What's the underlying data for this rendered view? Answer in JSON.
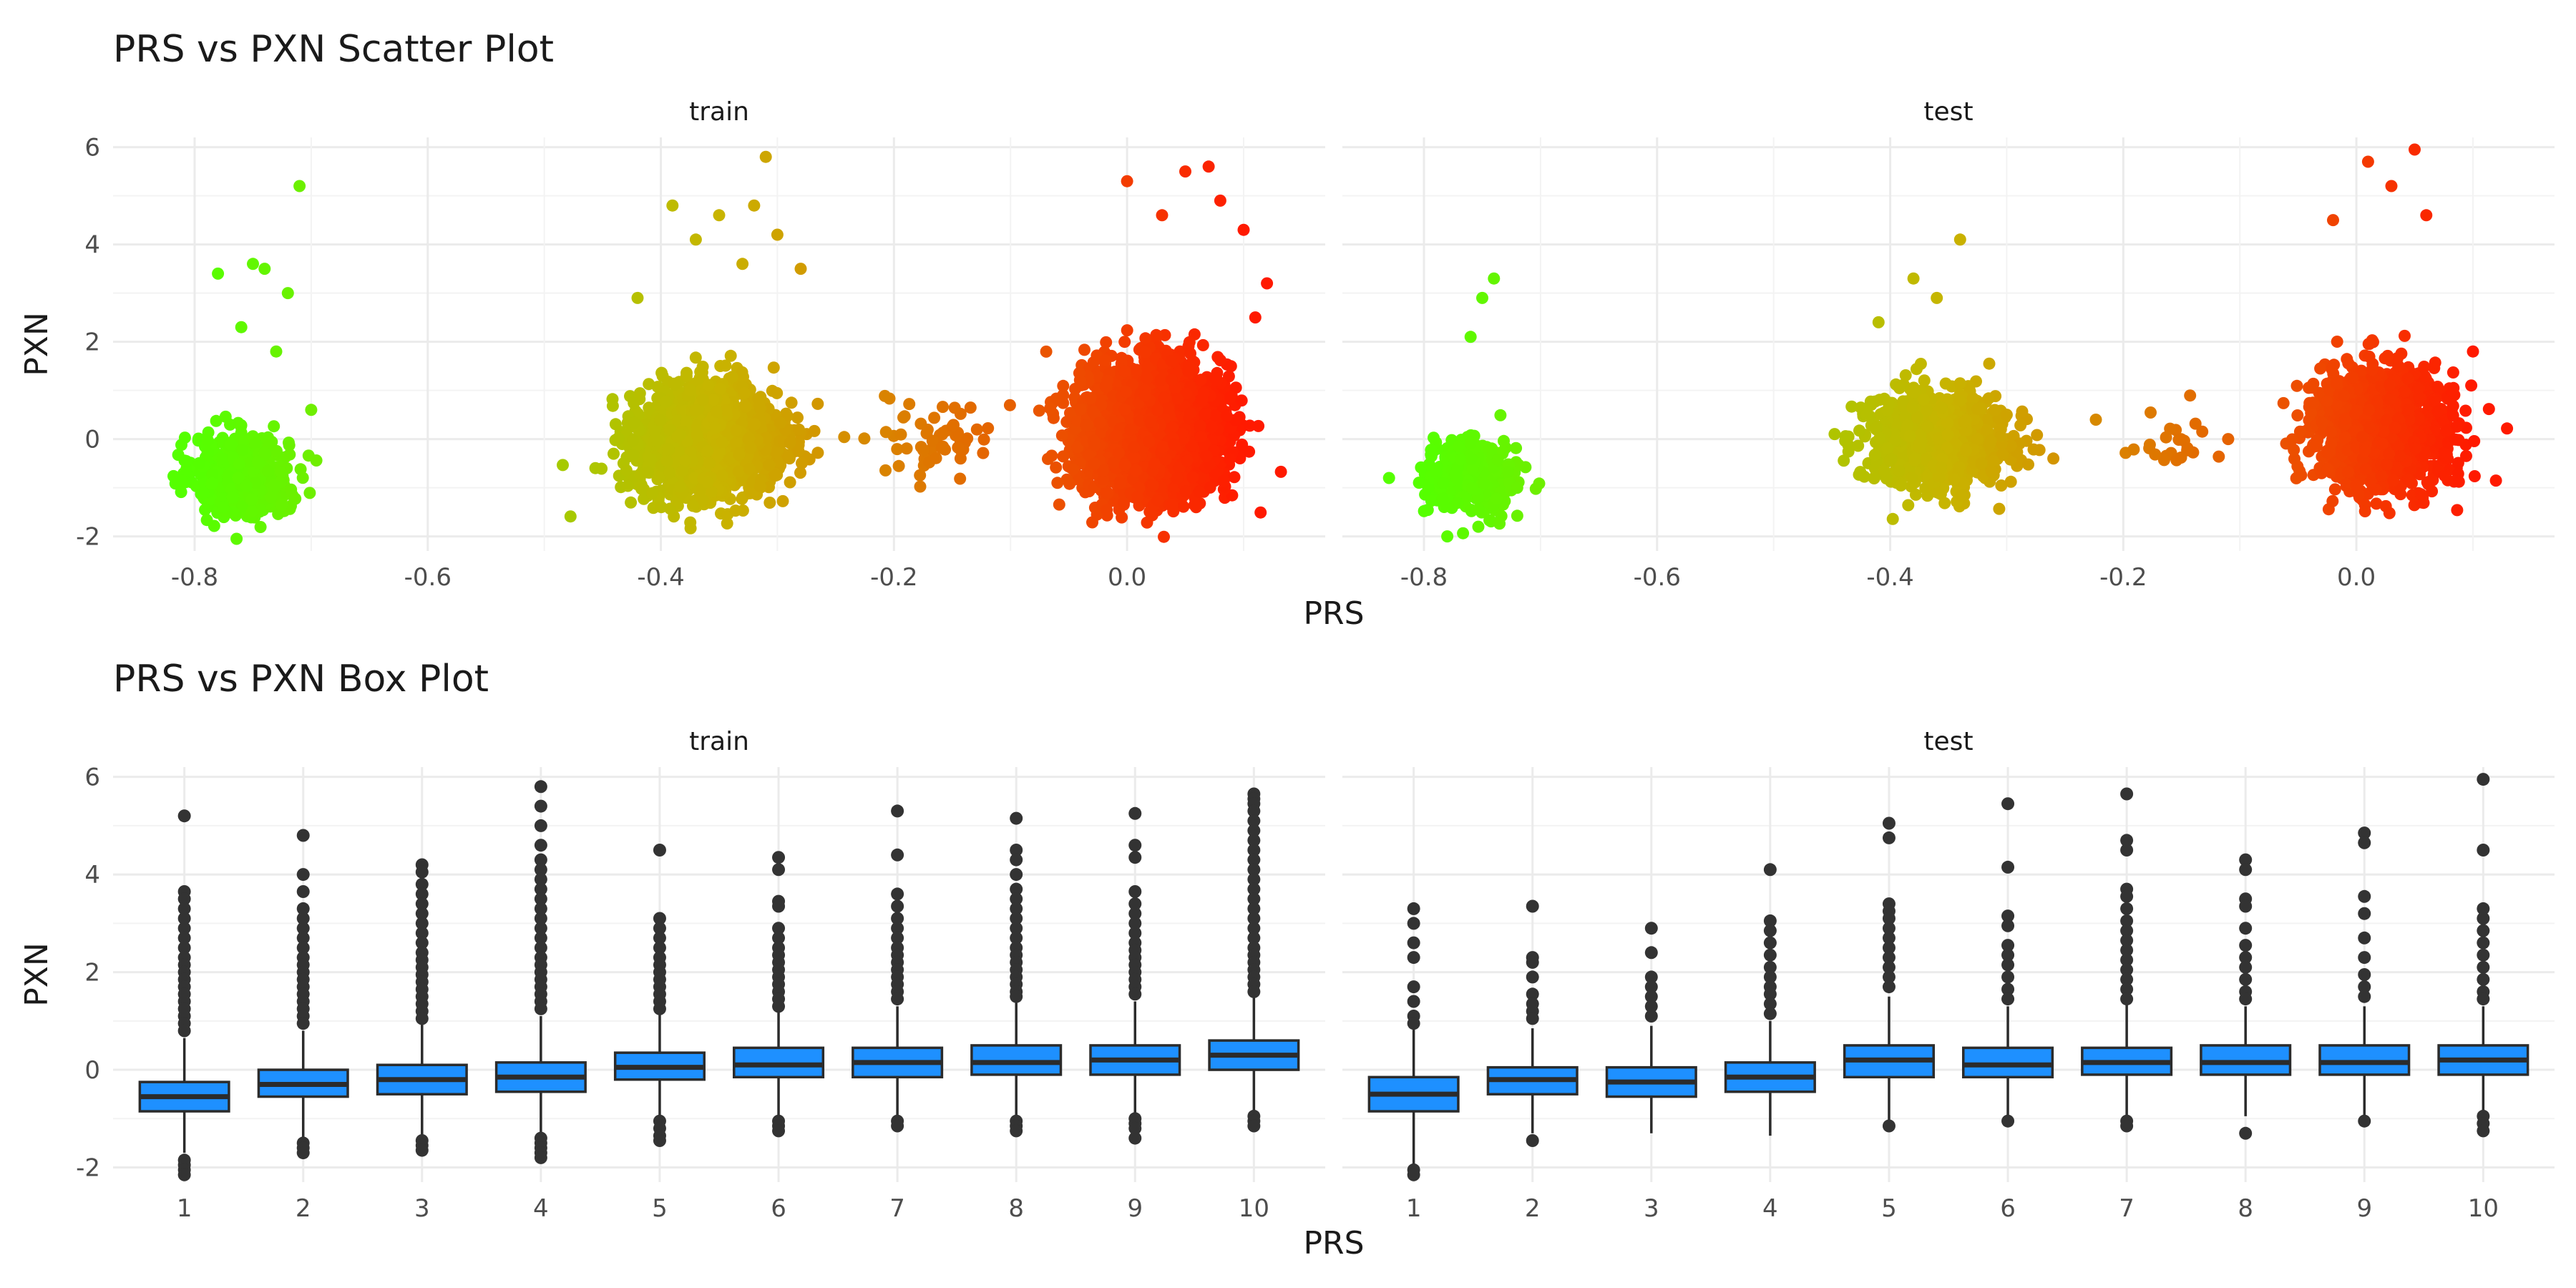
{
  "colors": {
    "low": "#55ff00",
    "mid": "#c8b400",
    "high": "#ff1a00",
    "box_fill": "#1e90ff",
    "box_line": "#2b2b2b",
    "outlier": "#333333"
  },
  "chart_data": [
    {
      "type": "scatter",
      "title": "PRS vs PXN Scatter Plot",
      "xlabel": "PRS",
      "ylabel": "PXN",
      "xlim": [
        -0.87,
        0.17
      ],
      "ylim": [
        -2.3,
        6.2
      ],
      "xticks": [
        -0.8,
        -0.6,
        -0.4,
        -0.2,
        0.0
      ],
      "xtick_labels": [
        "-0.8",
        "-0.6",
        "-0.4",
        "-0.2",
        "0.0"
      ],
      "yticks": [
        -2,
        0,
        2,
        4,
        6
      ],
      "ytick_labels": [
        "-2",
        "0",
        "2",
        "4",
        "6"
      ],
      "color_scale": {
        "variable": "PRS",
        "range": [
          -0.8,
          0.1
        ]
      },
      "grid": true,
      "panels": [
        {
          "label": "train",
          "clusters": [
            {
              "x_center": -0.76,
              "x_sd": 0.02,
              "y_center": -0.75,
              "y_sd": 0.4,
              "n": 700,
              "extremes": [
                [
                  -0.71,
                  5.2
                ],
                [
                  -0.78,
                  3.4
                ],
                [
                  -0.75,
                  3.6
                ],
                [
                  -0.74,
                  3.5
                ],
                [
                  -0.72,
                  3.0
                ],
                [
                  -0.76,
                  2.3
                ],
                [
                  -0.73,
                  1.8
                ],
                [
                  -0.7,
                  0.6
                ]
              ]
            },
            {
              "x_center": -0.36,
              "x_sd": 0.03,
              "y_center": -0.05,
              "y_sd": 0.55,
              "n": 1800,
              "extremes": [
                [
                  -0.31,
                  5.8
                ],
                [
                  -0.39,
                  4.8
                ],
                [
                  -0.35,
                  4.6
                ],
                [
                  -0.3,
                  4.2
                ],
                [
                  -0.28,
                  3.5
                ],
                [
                  -0.42,
                  2.9
                ],
                [
                  -0.33,
                  3.6
                ],
                [
                  -0.37,
                  4.1
                ],
                [
                  -0.32,
                  4.8
                ]
              ]
            },
            {
              "x_center": -0.16,
              "x_sd": 0.025,
              "y_center": 0.0,
              "y_sd": 0.45,
              "n": 60,
              "extremes": []
            },
            {
              "x_center": 0.02,
              "x_sd": 0.03,
              "y_center": 0.2,
              "y_sd": 0.65,
              "n": 2500,
              "extremes": [
                [
                  0.07,
                  5.6
                ],
                [
                  0.05,
                  5.5
                ],
                [
                  0.0,
                  5.3
                ],
                [
                  0.1,
                  4.3
                ],
                [
                  0.12,
                  3.2
                ],
                [
                  0.11,
                  2.5
                ],
                [
                  0.03,
                  4.6
                ],
                [
                  0.08,
                  4.9
                ]
              ]
            }
          ]
        },
        {
          "label": "test",
          "clusters": [
            {
              "x_center": -0.76,
              "x_sd": 0.02,
              "y_center": -0.75,
              "y_sd": 0.4,
              "n": 300,
              "extremes": [
                [
                  -0.74,
                  3.3
                ],
                [
                  -0.75,
                  2.9
                ],
                [
                  -0.76,
                  2.1
                ],
                [
                  -0.83,
                  -0.8
                ],
                [
                  -0.78,
                  -2.0
                ],
                [
                  -0.72,
                  -1.0
                ]
              ]
            },
            {
              "x_center": -0.36,
              "x_sd": 0.03,
              "y_center": -0.05,
              "y_sd": 0.5,
              "n": 900,
              "extremes": [
                [
                  -0.34,
                  4.1
                ],
                [
                  -0.38,
                  3.3
                ],
                [
                  -0.36,
                  2.9
                ],
                [
                  -0.26,
                  -0.4
                ],
                [
                  -0.3,
                  0.5
                ],
                [
                  -0.41,
                  2.4
                ]
              ]
            },
            {
              "x_center": -0.16,
              "x_sd": 0.025,
              "y_center": 0.0,
              "y_sd": 0.4,
              "n": 25,
              "extremes": [
                [
                  -0.11,
                  0.0
                ]
              ]
            },
            {
              "x_center": 0.02,
              "x_sd": 0.03,
              "y_center": 0.2,
              "y_sd": 0.6,
              "n": 1200,
              "extremes": [
                [
                  0.05,
                  5.95
                ],
                [
                  0.01,
                  5.7
                ],
                [
                  0.03,
                  5.2
                ],
                [
                  0.06,
                  4.6
                ],
                [
                  0.1,
                  1.8
                ],
                [
                  -0.02,
                  4.5
                ]
              ]
            }
          ]
        }
      ]
    },
    {
      "type": "box",
      "title": "PRS vs PXN Box Plot",
      "xlabel": "PRS",
      "ylabel": "PXN",
      "categories": [
        "1",
        "2",
        "3",
        "4",
        "5",
        "6",
        "7",
        "8",
        "9",
        "10"
      ],
      "ylim": [
        -2.3,
        6.2
      ],
      "yticks": [
        -2,
        0,
        2,
        4,
        6
      ],
      "ytick_labels": [
        "-2",
        "0",
        "2",
        "4",
        "6"
      ],
      "grid": true,
      "panels": [
        {
          "label": "train",
          "boxes": [
            {
              "q1": -0.85,
              "median": -0.55,
              "q3": -0.25,
              "lower": -1.7,
              "upper": 0.65,
              "outliers": [
                5.2,
                3.65,
                3.5,
                3.3,
                3.1,
                2.9,
                2.7,
                2.5,
                2.3,
                2.15,
                2.0,
                1.85,
                1.7,
                1.55,
                1.4,
                1.25,
                1.1,
                0.95,
                0.8,
                -1.85,
                -1.95,
                -2.05,
                -2.15
              ]
            },
            {
              "q1": -0.55,
              "median": -0.3,
              "q3": 0.0,
              "lower": -1.4,
              "upper": 0.8,
              "outliers": [
                4.8,
                4.0,
                3.65,
                3.3,
                3.1,
                2.9,
                2.7,
                2.5,
                2.3,
                2.15,
                2.0,
                1.85,
                1.7,
                1.55,
                1.4,
                1.25,
                1.1,
                0.95,
                -1.5,
                -1.6,
                -1.7
              ]
            },
            {
              "q1": -0.5,
              "median": -0.2,
              "q3": 0.1,
              "lower": -1.35,
              "upper": 0.95,
              "outliers": [
                4.2,
                4.05,
                3.8,
                3.6,
                3.4,
                3.2,
                3.0,
                2.8,
                2.6,
                2.4,
                2.25,
                2.1,
                1.95,
                1.8,
                1.65,
                1.5,
                1.35,
                1.2,
                1.05,
                -1.45,
                -1.55,
                -1.65
              ]
            },
            {
              "q1": -0.45,
              "median": -0.15,
              "q3": 0.15,
              "lower": -1.3,
              "upper": 1.1,
              "outliers": [
                5.8,
                5.4,
                5.0,
                4.6,
                4.3,
                4.1,
                3.9,
                3.7,
                3.5,
                3.3,
                3.1,
                2.9,
                2.7,
                2.5,
                2.3,
                2.15,
                2.0,
                1.85,
                1.7,
                1.55,
                1.4,
                1.25,
                -1.4,
                -1.5,
                -1.6,
                -1.7,
                -1.8
              ]
            },
            {
              "q1": -0.2,
              "median": 0.05,
              "q3": 0.35,
              "lower": -0.95,
              "upper": 1.15,
              "outliers": [
                4.5,
                3.1,
                2.9,
                2.7,
                2.5,
                2.3,
                2.15,
                2.0,
                1.85,
                1.7,
                1.55,
                1.4,
                1.25,
                -1.05,
                -1.2,
                -1.35,
                -1.45
              ]
            },
            {
              "q1": -0.15,
              "median": 0.1,
              "q3": 0.45,
              "lower": -0.95,
              "upper": 1.2,
              "outliers": [
                4.35,
                4.1,
                3.45,
                3.35,
                2.9,
                2.7,
                2.5,
                2.35,
                2.2,
                2.05,
                1.9,
                1.75,
                1.6,
                1.45,
                1.3,
                -1.05,
                -1.15,
                -1.25
              ]
            },
            {
              "q1": -0.15,
              "median": 0.15,
              "q3": 0.45,
              "lower": -1.0,
              "upper": 1.3,
              "outliers": [
                5.3,
                4.4,
                3.6,
                3.35,
                3.1,
                2.9,
                2.7,
                2.5,
                2.35,
                2.2,
                2.05,
                1.9,
                1.75,
                1.6,
                1.45,
                -1.05,
                -1.15
              ]
            },
            {
              "q1": -0.1,
              "median": 0.15,
              "q3": 0.5,
              "lower": -1.0,
              "upper": 1.4,
              "outliers": [
                5.15,
                4.5,
                4.3,
                4.0,
                3.7,
                3.5,
                3.3,
                3.1,
                2.9,
                2.7,
                2.5,
                2.35,
                2.2,
                2.05,
                1.9,
                1.75,
                1.6,
                1.5,
                -1.05,
                -1.15,
                -1.25
              ]
            },
            {
              "q1": -0.1,
              "median": 0.2,
              "q3": 0.5,
              "lower": -0.95,
              "upper": 1.4,
              "outliers": [
                5.25,
                4.6,
                4.35,
                3.65,
                3.4,
                3.2,
                3.0,
                2.8,
                2.6,
                2.45,
                2.3,
                2.15,
                2.0,
                1.85,
                1.7,
                1.55,
                -1.0,
                -1.1,
                -1.2,
                -1.4
              ]
            },
            {
              "q1": 0.0,
              "median": 0.3,
              "q3": 0.6,
              "lower": -0.85,
              "upper": 1.5,
              "outliers": [
                5.65,
                5.55,
                5.45,
                5.3,
                5.1,
                4.9,
                4.7,
                4.5,
                4.3,
                4.1,
                3.9,
                3.7,
                3.5,
                3.3,
                3.1,
                2.9,
                2.7,
                2.5,
                2.35,
                2.2,
                2.05,
                1.9,
                1.75,
                1.6,
                -0.95,
                -1.05,
                -1.15
              ]
            }
          ]
        },
        {
          "label": "test",
          "boxes": [
            {
              "q1": -0.85,
              "median": -0.5,
              "q3": -0.15,
              "lower": -1.95,
              "upper": 0.85,
              "outliers": [
                3.3,
                3.0,
                2.6,
                2.3,
                1.7,
                1.4,
                1.1,
                0.95,
                -2.05,
                -2.15
              ]
            },
            {
              "q1": -0.5,
              "median": -0.2,
              "q3": 0.05,
              "lower": -1.3,
              "upper": 0.85,
              "outliers": [
                3.35,
                2.3,
                2.2,
                1.9,
                1.55,
                1.35,
                1.2,
                1.05,
                -1.45
              ]
            },
            {
              "q1": -0.55,
              "median": -0.25,
              "q3": 0.05,
              "lower": -1.3,
              "upper": 0.9,
              "outliers": [
                2.9,
                2.4,
                1.9,
                1.7,
                1.5,
                1.3,
                1.1
              ]
            },
            {
              "q1": -0.45,
              "median": -0.15,
              "q3": 0.15,
              "lower": -1.35,
              "upper": 1.0,
              "outliers": [
                4.1,
                3.05,
                2.85,
                2.6,
                2.35,
                2.1,
                1.9,
                1.7,
                1.55,
                1.35,
                1.15
              ]
            },
            {
              "q1": -0.15,
              "median": 0.2,
              "q3": 0.5,
              "lower": -1.05,
              "upper": 1.5,
              "outliers": [
                5.05,
                4.75,
                3.4,
                3.25,
                3.1,
                2.9,
                2.7,
                2.5,
                2.3,
                2.1,
                1.9,
                1.7,
                -1.15
              ]
            },
            {
              "q1": -0.15,
              "median": 0.1,
              "q3": 0.45,
              "lower": -0.95,
              "upper": 1.3,
              "outliers": [
                5.45,
                4.15,
                3.15,
                2.95,
                2.55,
                2.35,
                2.15,
                1.9,
                1.65,
                1.45,
                -1.05
              ]
            },
            {
              "q1": -0.1,
              "median": 0.15,
              "q3": 0.45,
              "lower": -1.0,
              "upper": 1.35,
              "outliers": [
                5.65,
                4.7,
                4.5,
                3.7,
                3.55,
                3.3,
                3.05,
                2.85,
                2.65,
                2.45,
                2.25,
                2.05,
                1.85,
                1.65,
                1.45,
                -1.05,
                -1.15
              ]
            },
            {
              "q1": -0.1,
              "median": 0.15,
              "q3": 0.5,
              "lower": -0.95,
              "upper": 1.3,
              "outliers": [
                4.3,
                4.1,
                3.5,
                3.35,
                2.9,
                2.55,
                2.3,
                2.1,
                1.85,
                1.6,
                1.45,
                -1.3
              ]
            },
            {
              "q1": -0.1,
              "median": 0.15,
              "q3": 0.5,
              "lower": -0.95,
              "upper": 1.3,
              "outliers": [
                4.85,
                4.65,
                3.55,
                3.2,
                2.7,
                2.3,
                1.95,
                1.7,
                1.5,
                -1.05
              ]
            },
            {
              "q1": -0.1,
              "median": 0.2,
              "q3": 0.5,
              "lower": -0.9,
              "upper": 1.3,
              "outliers": [
                5.95,
                4.5,
                3.3,
                3.1,
                2.85,
                2.6,
                2.35,
                2.1,
                1.85,
                1.6,
                1.45,
                -0.95,
                -1.1,
                -1.25
              ]
            }
          ]
        }
      ]
    }
  ]
}
